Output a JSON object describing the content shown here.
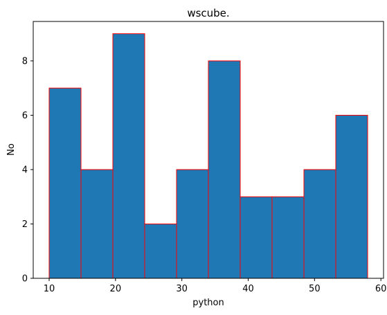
{
  "chart_data": {
    "type": "bar",
    "subtype": "histogram",
    "title": "wscube.",
    "xlabel": "python",
    "ylabel": "No",
    "bin_edges": [
      10,
      14.8,
      19.6,
      24.4,
      29.2,
      34.0,
      38.8,
      43.6,
      48.4,
      53.2,
      58.0
    ],
    "values": [
      7,
      4,
      9,
      2,
      4,
      8,
      3,
      3,
      4,
      6
    ],
    "xlim": [
      7.6,
      60.4
    ],
    "ylim": [
      0,
      9.45
    ],
    "xticks": [
      10,
      20,
      30,
      40,
      50,
      60
    ],
    "yticks": [
      0,
      2,
      4,
      6,
      8
    ],
    "bar_color": "#1f77b4",
    "edge_color": "#ff0000",
    "grid": false
  }
}
